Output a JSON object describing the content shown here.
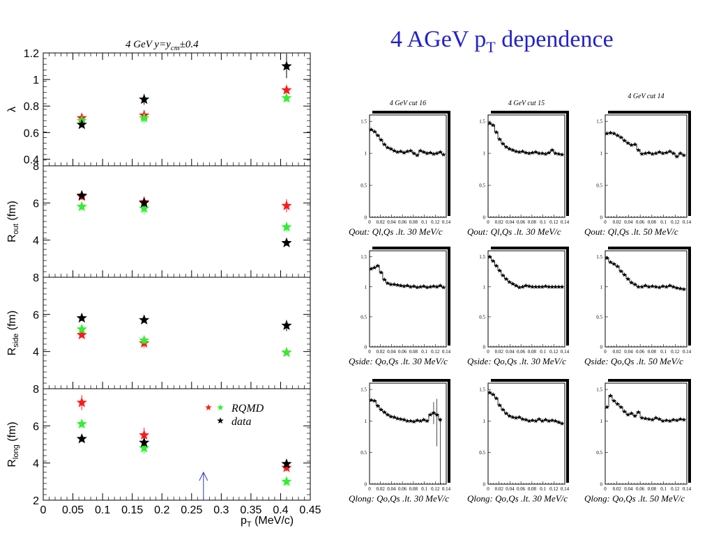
{
  "slide_title": {
    "main": "4 AGeV p",
    "sub": "T",
    "tail": " dependence"
  },
  "colors": {
    "rqmd_red": "#ff1a1a",
    "rqmd_green": "#33ee33",
    "data": "#000000",
    "arrow": "#3333cc",
    "title": "#2222cc"
  },
  "chart_data": [
    {
      "type": "scatter",
      "title": "4 GeV  y=y_cm±0.4",
      "title_parts": {
        "a": "4 GeV  y=y",
        "sub": "cm",
        "b": "±0.4"
      },
      "x_ticks": [
        "0",
        "0.05",
        "0.1",
        "0.15",
        "0.2",
        "0.25",
        "0.3",
        "0.35",
        "0.4",
        "0.45"
      ],
      "xlim": [
        0,
        0.45
      ],
      "xlabel": {
        "main": "p",
        "sub": "T",
        "tail": " (MeV/c)"
      },
      "legend": {
        "rqmd": "RQMD",
        "data": "data",
        "placement": "upper-right of bottom panel"
      },
      "arrow_x": 0.27,
      "panels": [
        {
          "ylabel": {
            "main": "λ",
            "sub": ""
          },
          "ylim": [
            0.35,
            1.2
          ],
          "y_ticks": [
            "0.4",
            "0.6",
            "0.8",
            "1",
            "1.2"
          ],
          "series": [
            {
              "key": "red",
              "x": [
                0.065,
                0.17,
                0.41
              ],
              "y": [
                0.71,
                0.73,
                0.92
              ],
              "err": [
                0.02,
                0.04,
                0.04
              ]
            },
            {
              "key": "green",
              "x": [
                0.065,
                0.17,
                0.41
              ],
              "y": [
                0.69,
                0.71,
                0.86
              ],
              "err": [
                0.02,
                0.04,
                0.03
              ]
            },
            {
              "key": "black",
              "x": [
                0.065,
                0.17,
                0.41
              ],
              "y": [
                0.66,
                0.85,
                1.1
              ],
              "err": [
                0.02,
                0.04,
                0.09
              ]
            }
          ]
        },
        {
          "ylabel": {
            "main": "R",
            "sub": "out",
            "tail": " (fm)"
          },
          "ylim": [
            2,
            8
          ],
          "y_ticks": [
            "4",
            "6",
            "8"
          ],
          "series": [
            {
              "key": "red",
              "x": [
                0.065,
                0.17,
                0.41
              ],
              "y": [
                6.35,
                6.05,
                5.85
              ],
              "err": [
                0.2,
                0.3,
                0.35
              ]
            },
            {
              "key": "green",
              "x": [
                0.065,
                0.17,
                0.41
              ],
              "y": [
                5.8,
                5.7,
                4.7
              ],
              "err": [
                0.2,
                0.3,
                0.25
              ]
            },
            {
              "key": "black",
              "x": [
                0.065,
                0.17,
                0.41
              ],
              "y": [
                6.4,
                6.0,
                3.85
              ],
              "err": [
                0.15,
                0.2,
                0.15
              ]
            }
          ]
        },
        {
          "ylabel": {
            "main": "R",
            "sub": "side",
            "tail": " (fm)"
          },
          "ylim": [
            2,
            8
          ],
          "y_ticks": [
            "4",
            "6",
            "8"
          ],
          "series": [
            {
              "key": "red",
              "x": [
                0.065,
                0.17,
                0.41
              ],
              "y": [
                4.9,
                4.45,
                3.95
              ],
              "err": [
                0.15,
                0.25,
                0.15
              ]
            },
            {
              "key": "green",
              "x": [
                0.065,
                0.17,
                0.41
              ],
              "y": [
                5.2,
                4.6,
                3.95
              ],
              "err": [
                0.2,
                0.2,
                0.15
              ]
            },
            {
              "key": "black",
              "x": [
                0.065,
                0.17,
                0.41
              ],
              "y": [
                5.8,
                5.7,
                5.4
              ],
              "err": [
                0.15,
                0.15,
                0.3
              ]
            }
          ]
        },
        {
          "ylabel": {
            "main": "R",
            "sub": "long",
            "tail": " (fm)"
          },
          "ylim": [
            2,
            8
          ],
          "y_ticks": [
            "2",
            "4",
            "6",
            "8"
          ],
          "series": [
            {
              "key": "red",
              "x": [
                0.065,
                0.17,
                0.41
              ],
              "y": [
                7.25,
                5.5,
                3.75
              ],
              "err": [
                0.4,
                0.4,
                0.2
              ]
            },
            {
              "key": "green",
              "x": [
                0.065,
                0.17,
                0.41
              ],
              "y": [
                6.1,
                4.8,
                3.0
              ],
              "err": [
                0.2,
                0.3,
                0.2
              ]
            },
            {
              "key": "black",
              "x": [
                0.065,
                0.17,
                0.41
              ],
              "y": [
                5.3,
                5.1,
                3.95
              ],
              "err": [
                0.15,
                0.2,
                0.2
              ]
            }
          ]
        }
      ]
    },
    {
      "type": "grid-of-line-plots",
      "column_titles": [
        "4 GeV cut 16",
        "4 GeV cut 15",
        "4 GeV cut 14"
      ],
      "x_ticks": [
        "0",
        "0.02",
        "0.04",
        "0.06",
        "0.08",
        "0.1",
        "0.12",
        "0.14"
      ],
      "xlim": [
        0,
        0.14
      ],
      "y_ticks": [
        "0",
        "0.5",
        "1",
        "1.5"
      ],
      "ylim": [
        0,
        1.6
      ],
      "row_captions": [
        [
          "Qout:  Ql,Qs .lt.  30 MeV/c",
          "Qout:  Ql,Qs .lt.  30 MeV/c",
          "Qout:  Ql,Qs .lt.  50 MeV/c"
        ],
        [
          "Qside: Qo,Qs .lt.  30 MeV/c",
          "Qside: Qo,Qs .lt.  30 MeV/c",
          "Qside: Qo,Qs .lt.  50 MeV/c"
        ],
        [
          "Qlong: Qo,Qs .lt.  30 MeV/c",
          "Qlong: Qo,Qs .lt.  30 MeV/c",
          "Qlong: Qo,Qs .lt.  50 MeV/c"
        ]
      ],
      "rows": [
        [
          {
            "x": [
              0.003,
              0.009,
              0.015,
              0.021,
              0.027,
              0.033,
              0.039,
              0.045,
              0.051,
              0.057,
              0.063,
              0.069,
              0.075,
              0.081,
              0.087,
              0.093,
              0.099,
              0.105,
              0.111,
              0.117,
              0.123,
              0.129,
              0.135
            ],
            "y": [
              1.37,
              1.34,
              1.28,
              1.21,
              1.14,
              1.09,
              1.07,
              1.04,
              1.02,
              1.03,
              1.01,
              1.03,
              1.04,
              1.0,
              0.97,
              1.04,
              1.02,
              1.0,
              1.01,
              0.99,
              1.0,
              1.02,
              0.98
            ]
          },
          {
            "x": [
              0.003,
              0.009,
              0.015,
              0.021,
              0.027,
              0.033,
              0.039,
              0.045,
              0.051,
              0.057,
              0.063,
              0.069,
              0.075,
              0.081,
              0.087,
              0.093,
              0.099,
              0.105,
              0.111,
              0.117,
              0.123,
              0.129,
              0.135
            ],
            "y": [
              1.47,
              1.44,
              1.33,
              1.22,
              1.15,
              1.1,
              1.07,
              1.05,
              1.03,
              1.02,
              1.03,
              1.01,
              1.0,
              1.01,
              1.02,
              1.0,
              1.0,
              0.99,
              1.01,
              1.05,
              1.0,
              0.99,
              0.98
            ]
          },
          {
            "x": [
              0.003,
              0.009,
              0.015,
              0.021,
              0.027,
              0.033,
              0.039,
              0.045,
              0.051,
              0.057,
              0.063,
              0.069,
              0.075,
              0.081,
              0.087,
              0.093,
              0.099,
              0.105,
              0.111,
              0.117,
              0.123,
              0.129,
              0.135
            ],
            "y": [
              1.31,
              1.32,
              1.31,
              1.28,
              1.25,
              1.2,
              1.16,
              1.13,
              1.14,
              1.05,
              0.99,
              1.0,
              1.01,
              0.99,
              1.0,
              1.02,
              1.0,
              1.01,
              1.03,
              1.0,
              0.95,
              1.0,
              0.97
            ]
          }
        ],
        [
          {
            "x": [
              0.003,
              0.009,
              0.015,
              0.021,
              0.027,
              0.033,
              0.039,
              0.045,
              0.051,
              0.057,
              0.063,
              0.069,
              0.075,
              0.081,
              0.087,
              0.093,
              0.099,
              0.105,
              0.111,
              0.117,
              0.123,
              0.129,
              0.135
            ],
            "y": [
              1.3,
              1.32,
              1.35,
              1.24,
              1.12,
              1.06,
              1.04,
              1.04,
              1.03,
              1.02,
              1.01,
              1.02,
              1.0,
              1.01,
              0.99,
              1.0,
              1.01,
              0.99,
              1.0,
              1.01,
              1.0,
              1.02,
              0.99
            ]
          },
          {
            "x": [
              0.003,
              0.009,
              0.015,
              0.021,
              0.027,
              0.033,
              0.039,
              0.045,
              0.051,
              0.057,
              0.063,
              0.069,
              0.075,
              0.081,
              0.087,
              0.093,
              0.099,
              0.105,
              0.111,
              0.117,
              0.123,
              0.129,
              0.135
            ],
            "y": [
              1.5,
              1.43,
              1.35,
              1.27,
              1.19,
              1.13,
              1.08,
              1.05,
              1.02,
              0.99,
              1.0,
              1.02,
              1.01,
              1.0,
              1.0,
              1.0,
              1.0,
              1.01,
              1.0,
              1.0,
              1.0,
              1.0,
              1.0
            ]
          },
          {
            "x": [
              0.003,
              0.009,
              0.015,
              0.021,
              0.027,
              0.033,
              0.039,
              0.045,
              0.051,
              0.057,
              0.063,
              0.069,
              0.075,
              0.081,
              0.087,
              0.093,
              0.099,
              0.105,
              0.111,
              0.117,
              0.123,
              0.129,
              0.135
            ],
            "y": [
              1.48,
              1.41,
              1.38,
              1.34,
              1.26,
              1.2,
              1.13,
              1.07,
              1.04,
              1.0,
              1.0,
              1.02,
              1.0,
              1.01,
              1.0,
              0.99,
              1.01,
              1.0,
              1.02,
              1.0,
              0.98,
              0.97,
              0.96
            ]
          }
        ],
        [
          {
            "x": [
              0.003,
              0.009,
              0.015,
              0.021,
              0.027,
              0.033,
              0.039,
              0.045,
              0.051,
              0.057,
              0.063,
              0.069,
              0.075,
              0.081,
              0.087,
              0.093,
              0.099,
              0.105,
              0.111,
              0.117,
              0.123,
              0.129
            ],
            "y": [
              1.33,
              1.32,
              1.24,
              1.18,
              1.14,
              1.1,
              1.07,
              1.06,
              1.04,
              1.03,
              1.02,
              1.0,
              1.0,
              0.99,
              1.01,
              1.0,
              1.02,
              1.0,
              1.1,
              1.13,
              1.1,
              1.02
            ]
          },
          {
            "x": [
              0.003,
              0.009,
              0.015,
              0.021,
              0.027,
              0.033,
              0.039,
              0.045,
              0.051,
              0.057,
              0.063,
              0.069,
              0.075,
              0.081,
              0.087,
              0.093,
              0.099,
              0.105,
              0.111,
              0.117,
              0.123,
              0.129,
              0.135
            ],
            "y": [
              1.45,
              1.42,
              1.36,
              1.25,
              1.18,
              1.12,
              1.08,
              1.06,
              1.05,
              1.06,
              1.03,
              1.02,
              1.0,
              1.01,
              1.0,
              1.03,
              1.0,
              1.02,
              1.0,
              1.01,
              1.0,
              0.98,
              0.96
            ]
          },
          {
            "x": [
              0.003,
              0.009,
              0.015,
              0.021,
              0.027,
              0.033,
              0.039,
              0.045,
              0.051,
              0.057,
              0.063,
              0.069,
              0.075,
              0.081,
              0.087,
              0.093,
              0.099,
              0.105,
              0.111,
              0.117,
              0.123,
              0.129,
              0.135
            ],
            "y": [
              1.22,
              1.4,
              1.32,
              1.27,
              1.22,
              1.15,
              1.1,
              1.12,
              1.08,
              1.14,
              1.05,
              1.04,
              1.03,
              1.02,
              1.05,
              1.03,
              1.0,
              1.01,
              1.0,
              1.02,
              1.01,
              1.03,
              1.02
            ]
          }
        ]
      ]
    }
  ]
}
